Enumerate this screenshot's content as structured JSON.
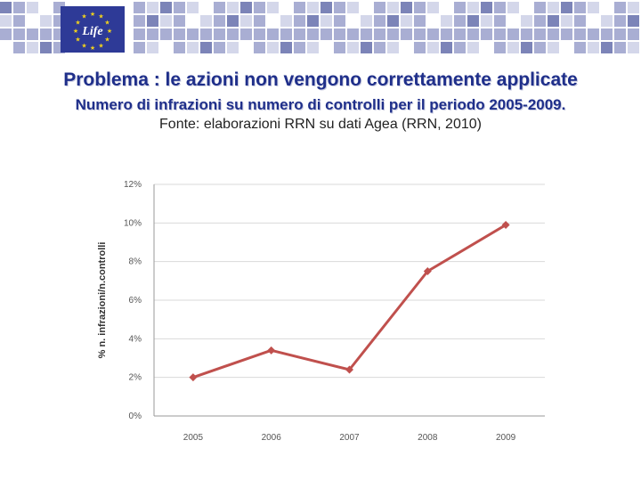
{
  "header": {
    "logo_text": "Life",
    "title": "Problema : le azioni non vengono correttamente applicate",
    "subtitle": "Numero di infrazioni su numero di controlli per il periodo 2005-2009.",
    "source": "Fonte: elaborazioni RRN su dati Agea (RRN, 2010)"
  },
  "colors": {
    "title": "#1f2f8a",
    "series": "#c0504d",
    "tile_dark": "#7c84b8",
    "tile_mid": "#a9aed3",
    "tile_light": "#d4d7ea",
    "logo_bg": "#2e3a97",
    "logo_star": "#f2d21b"
  },
  "chart_data": {
    "type": "line",
    "x": [
      "2005",
      "2006",
      "2007",
      "2008",
      "2009"
    ],
    "series": [
      {
        "values": [
          0.02,
          0.034,
          0.024,
          0.075,
          0.099
        ]
      }
    ],
    "ylabel": "% n. infrazioni/n.controlli",
    "ylim": [
      0,
      0.12
    ],
    "yticks": [
      "0%",
      "2%",
      "4%",
      "6%",
      "8%",
      "10%",
      "12%"
    ],
    "grid": true,
    "legend": "none"
  }
}
